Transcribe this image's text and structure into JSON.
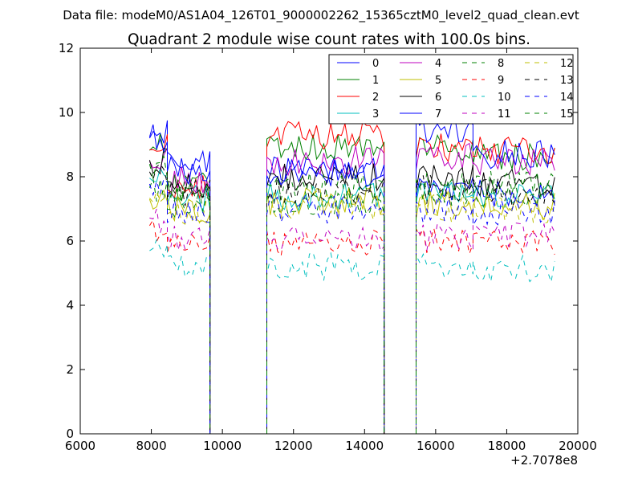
{
  "figure": {
    "suptitle": "Data file: modeM0/AS1A04_126T01_9000002262_15365cztM0_level2_quad_clean.evt"
  },
  "chart_data": {
    "type": "line",
    "title": "Quadrant 2 module wise count rates with 100.0s bins.",
    "xlabel": "",
    "ylabel": "",
    "x_offset_label": "+2.7078e8",
    "xlim": [
      6000,
      20000
    ],
    "ylim": [
      0,
      12
    ],
    "xticks": [
      6000,
      8000,
      10000,
      12000,
      14000,
      16000,
      18000,
      20000
    ],
    "yticks": [
      0,
      2,
      4,
      6,
      8,
      10,
      12
    ],
    "grid": false,
    "legend_position": "top-right",
    "legend_columns": 4,
    "segments": [
      {
        "x_start": 7950,
        "x_end": 8450
      },
      {
        "x_start": 8450,
        "x_end": 9650
      },
      {
        "x_start": 9650,
        "x_end": 11250
      },
      {
        "x_start": 11250,
        "x_end": 14550
      },
      {
        "x_start": 14550,
        "x_end": 15450
      },
      {
        "x_start": 15450,
        "x_end": 17050
      },
      {
        "x_start": 17050,
        "x_end": 19350
      }
    ],
    "series": [
      {
        "name": "0",
        "color": "#0000ff",
        "dash": "solid",
        "levels": [
          9.3,
          8.4,
          0,
          8.2,
          0,
          7.6,
          7.5
        ]
      },
      {
        "name": "1",
        "color": "#008000",
        "dash": "solid",
        "levels": [
          8.9,
          7.7,
          0,
          8.9,
          0,
          8.9,
          8.6
        ]
      },
      {
        "name": "2",
        "color": "#ff0000",
        "dash": "solid",
        "levels": [
          8.9,
          7.6,
          0,
          9.3,
          0,
          8.9,
          8.8
        ]
      },
      {
        "name": "3",
        "color": "#00bfbf",
        "dash": "solid",
        "levels": [
          8.0,
          7.3,
          0,
          7.4,
          0,
          7.5,
          7.4
        ]
      },
      {
        "name": "4",
        "color": "#bf00bf",
        "dash": "solid",
        "levels": [
          8.5,
          7.9,
          0,
          8.5,
          0,
          8.6,
          8.5
        ]
      },
      {
        "name": "5",
        "color": "#bfbf00",
        "dash": "solid",
        "levels": [
          7.3,
          7.0,
          0,
          7.2,
          0,
          7.1,
          7.1
        ]
      },
      {
        "name": "6",
        "color": "#000000",
        "dash": "solid",
        "levels": [
          8.5,
          7.7,
          0,
          8.0,
          0,
          8.0,
          7.8
        ]
      },
      {
        "name": "7",
        "color": "#0000ff",
        "dash": "solid",
        "levels": [
          9.2,
          8.2,
          0,
          8.1,
          0,
          9.4,
          8.7
        ]
      },
      {
        "name": "8",
        "color": "#008000",
        "dash": "dashed",
        "levels": [
          7.6,
          7.2,
          0,
          7.2,
          0,
          7.5,
          7.5
        ]
      },
      {
        "name": "9",
        "color": "#ff0000",
        "dash": "dashed",
        "levels": [
          6.4,
          6.0,
          0,
          5.9,
          0,
          6.0,
          6.0
        ]
      },
      {
        "name": "10",
        "color": "#00bfbf",
        "dash": "dashed",
        "levels": [
          5.6,
          5.2,
          0,
          5.2,
          0,
          5.2,
          5.1
        ]
      },
      {
        "name": "11",
        "color": "#bf00bf",
        "dash": "dashed",
        "levels": [
          6.6,
          6.1,
          0,
          6.1,
          0,
          6.1,
          6.2
        ]
      },
      {
        "name": "12",
        "color": "#bfbf00",
        "dash": "dashed",
        "levels": [
          7.2,
          6.9,
          0,
          7.1,
          0,
          7.0,
          7.0
        ]
      },
      {
        "name": "13",
        "color": "#000000",
        "dash": "dashed",
        "levels": [
          8.0,
          7.5,
          0,
          7.6,
          0,
          7.6,
          7.5
        ]
      },
      {
        "name": "14",
        "color": "#0000ff",
        "dash": "dashed",
        "levels": [
          7.6,
          7.0,
          0,
          7.0,
          0,
          7.0,
          6.9
        ]
      },
      {
        "name": "15",
        "color": "#008000",
        "dash": "dashed",
        "levels": [
          8.2,
          7.6,
          0,
          7.7,
          0,
          7.7,
          7.8
        ]
      }
    ]
  }
}
